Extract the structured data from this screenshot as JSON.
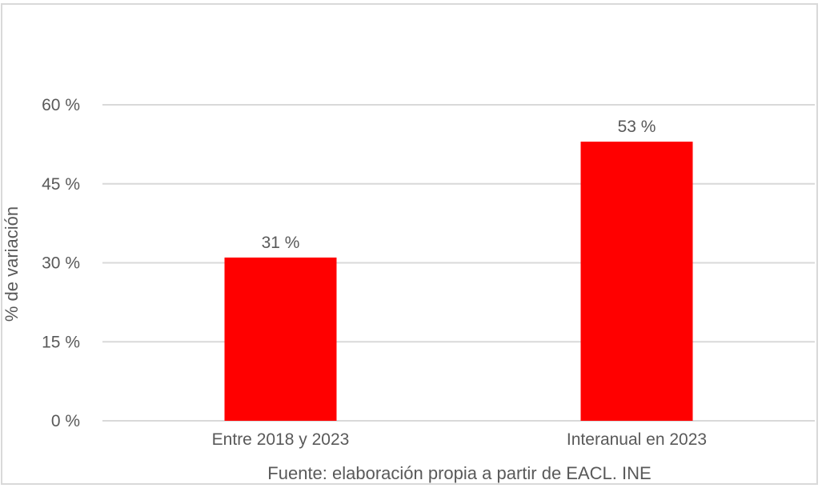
{
  "chart_data": {
    "type": "bar",
    "categories": [
      "Entre 2018 y 2023",
      "Interanual en 2023"
    ],
    "values": [
      31,
      53
    ],
    "data_labels": [
      "31 %",
      "53 %"
    ],
    "title": "",
    "xlabel": "Fuente: elaboración propia a partir de EACL. INE",
    "ylabel": "% de variación",
    "ylim": [
      0,
      60
    ],
    "yticks": [
      0,
      15,
      30,
      45,
      60
    ],
    "ytick_labels": [
      "0 %",
      "15 %",
      "30 %",
      "45 %",
      "60 %"
    ],
    "grid": true,
    "legend": "none",
    "bar_color": "#ff0000",
    "grid_color": "#d9d9d9",
    "text_color": "#595959"
  }
}
